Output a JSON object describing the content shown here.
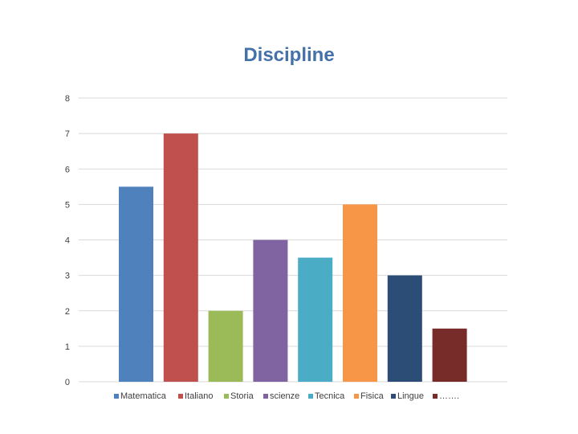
{
  "chart_data": {
    "type": "bar",
    "title": "Discipline",
    "categories": [
      "Matematica",
      "Italiano",
      "Storia",
      "scienze",
      "Tecnica",
      "Fisica",
      "Lingue",
      "……."
    ],
    "values": [
      5.5,
      7,
      2,
      4,
      3.5,
      5,
      3,
      1.5
    ],
    "colors": [
      "#4f81bd",
      "#c0504d",
      "#9bbb59",
      "#8064a2",
      "#4bacc6",
      "#f79646",
      "#2c4d75",
      "#772c2a"
    ],
    "ylim": [
      0,
      8
    ],
    "yticks": [
      "0",
      "1",
      "2",
      "3",
      "4",
      "5",
      "6",
      "7",
      "8"
    ],
    "grid": true,
    "legend_position": "bottom",
    "xlabel": "",
    "ylabel": ""
  }
}
